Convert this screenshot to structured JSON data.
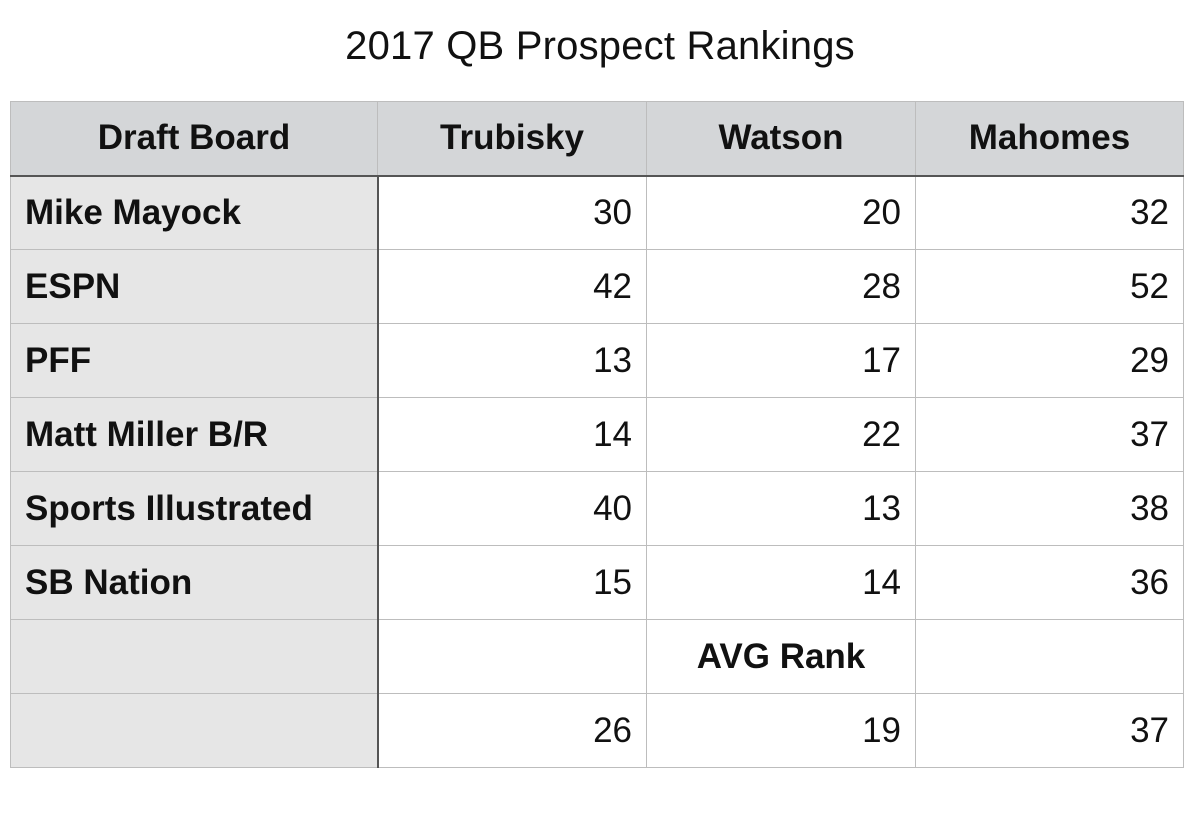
{
  "chart_data": {
    "type": "table",
    "title": "2017 QB Prospect Rankings",
    "columns": [
      "Draft Board",
      "Trubisky",
      "Watson",
      "Mahomes"
    ],
    "rows": [
      {
        "board": "Mike Mayock",
        "values": [
          "30",
          "20",
          "32"
        ]
      },
      {
        "board": "ESPN",
        "values": [
          "42",
          "28",
          "52"
        ]
      },
      {
        "board": "PFF",
        "values": [
          "13",
          "17",
          "29"
        ]
      },
      {
        "board": "Matt Miller B/R",
        "values": [
          "14",
          "22",
          "37"
        ]
      },
      {
        "board": "Sports Illustrated",
        "values": [
          "40",
          "13",
          "38"
        ]
      },
      {
        "board": "SB Nation",
        "values": [
          "15",
          "14",
          "36"
        ]
      }
    ],
    "avg_label": "AVG Rank",
    "avg_values": [
      "26",
      "19",
      "37"
    ]
  }
}
